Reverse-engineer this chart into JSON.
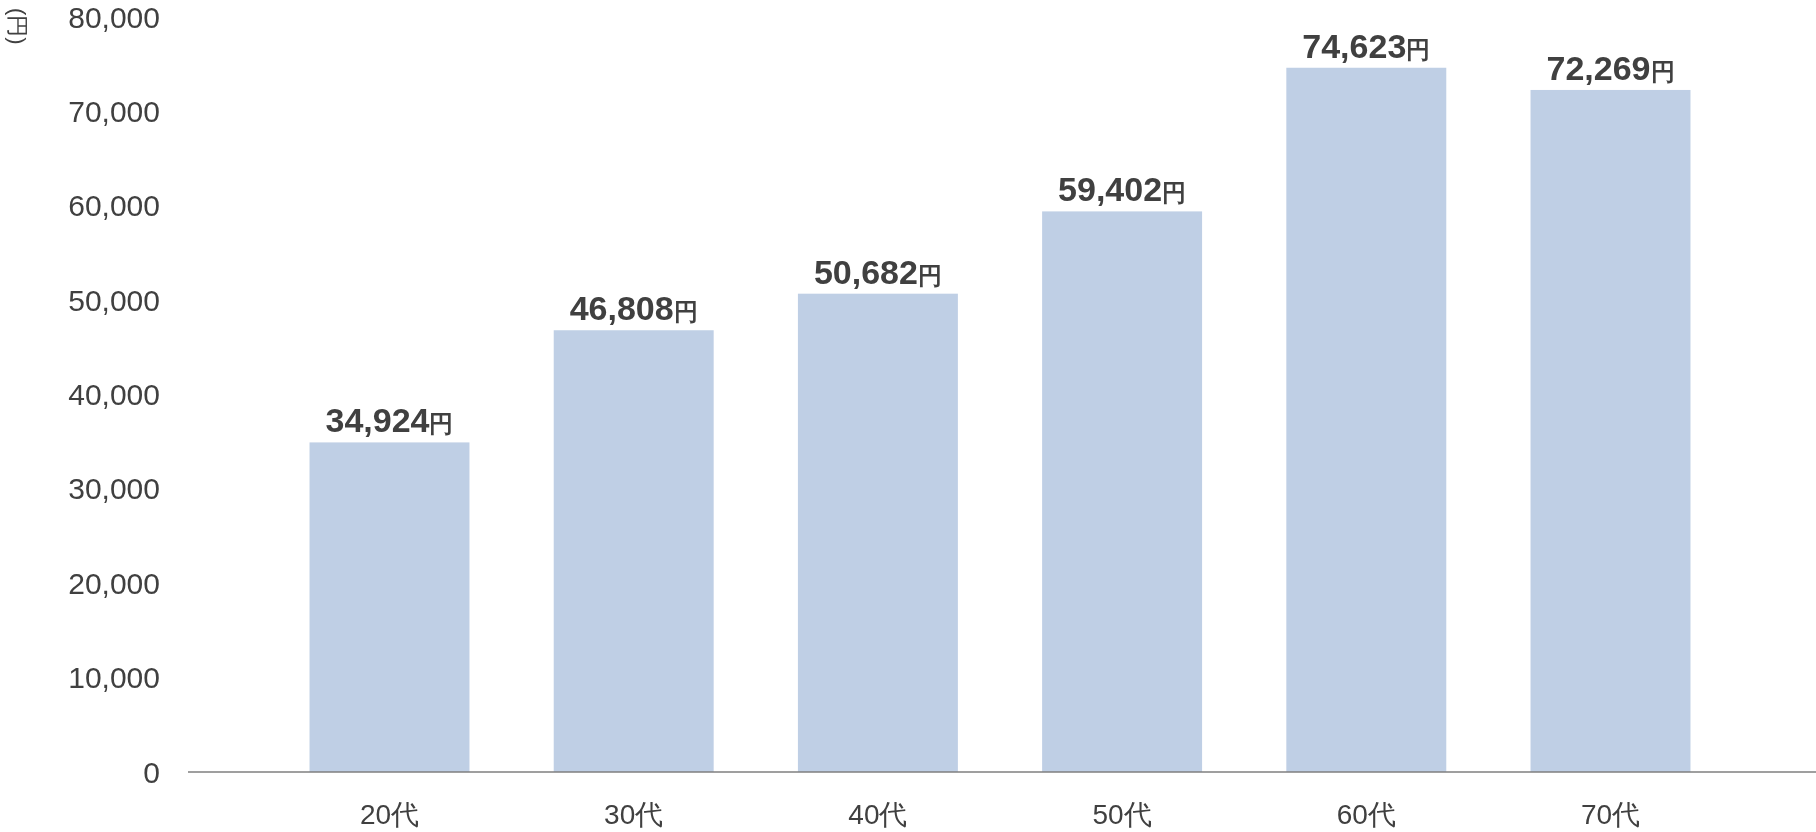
{
  "chart_data": {
    "type": "bar",
    "ylabel": "(円)",
    "categories": [
      "20代",
      "30代",
      "40代",
      "50代",
      "60代",
      "70代"
    ],
    "values": [
      34924,
      46808,
      50682,
      59402,
      74623,
      72269
    ],
    "value_labels": [
      "34,924円",
      "46,808円",
      "50,682円",
      "59,402円",
      "74,623円",
      "72,269円"
    ],
    "color": "#bfcfe5",
    "ylim": [
      0,
      80000
    ],
    "yticks": [
      0,
      {
        "value": 10000,
        "label": "10,000"
      },
      {
        "value": 20000,
        "label": "20,000"
      },
      {
        "value": 30000,
        "label": "30,000"
      },
      {
        "value": 40000,
        "label": "40,000"
      },
      {
        "value": 50000,
        "label": "50,000"
      },
      {
        "value": 60000,
        "label": "60,000"
      },
      {
        "value": 70000,
        "label": "70,000"
      },
      {
        "value": 80000,
        "label": "80,000"
      }
    ],
    "grid": false
  }
}
